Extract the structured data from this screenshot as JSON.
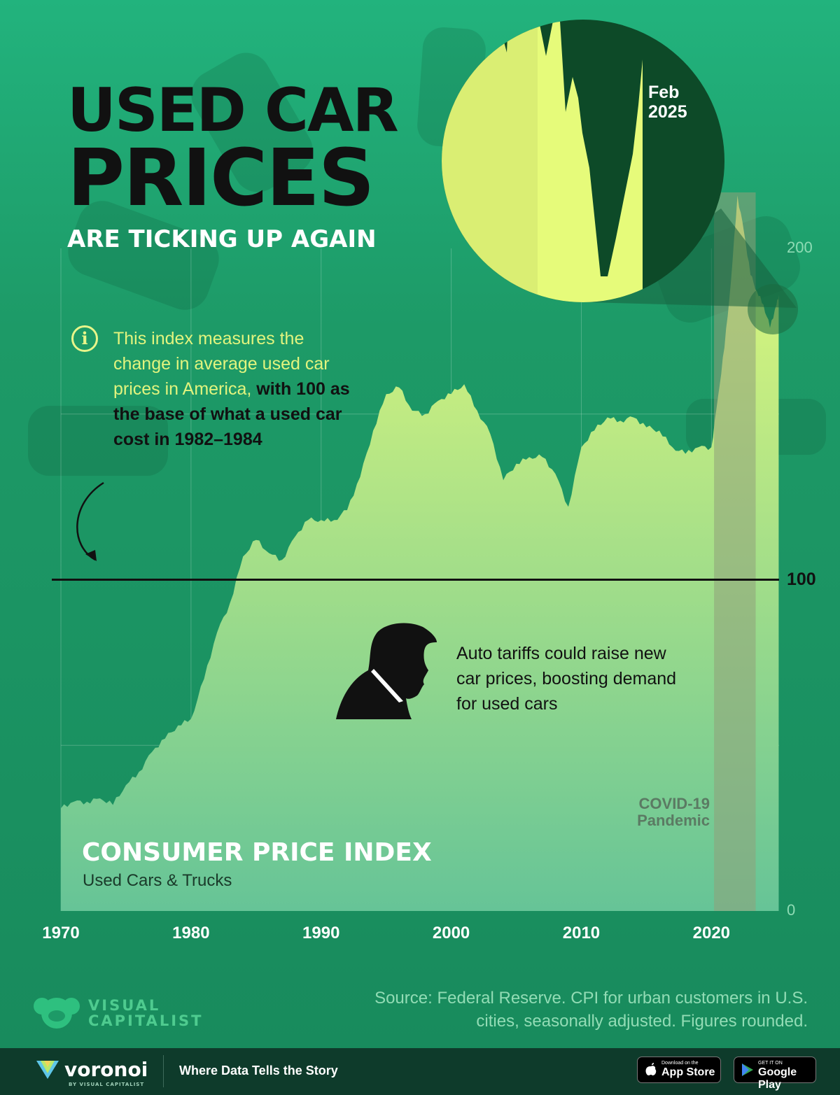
{
  "header": {
    "title_line1": "USED CAR",
    "title_line2": "PRICES",
    "subtitle": "ARE TICKING UP AGAIN"
  },
  "info_note": {
    "text_highlight": "This index measures the change in average used car prices in America,",
    "text_bold": "with 100 as the base of what a used car cost in 1982–1984"
  },
  "annotation": "Auto tariffs could raise new car prices, boosting demand for used cars",
  "zoom_label_line1": "Feb",
  "zoom_label_line2": "2025",
  "covid_label_line1": "COVID-19",
  "covid_label_line2": "Pandemic",
  "chart_title": "CONSUMER PRICE INDEX",
  "chart_subtitle": "Used Cars & Trucks",
  "reference_label": "100",
  "source": "Source: Federal Reserve. CPI for urban customers in U.S. cities, seasonally adjusted. Figures rounded.",
  "brand": {
    "vc_line1": "VISUAL",
    "vc_line2": "CAPITALIST",
    "voronoi": "voronoi",
    "voronoi_sub": "BY VISUAL CAPITALIST",
    "tagline": "Where Data Tells the Story",
    "appstore_small": "Download on the",
    "appstore_big": "App Store",
    "googleplay_small": "GET IT ON",
    "googleplay_big": "Google Play"
  },
  "colors": {
    "background": "#1f9a68",
    "area_top": "#e6fb7a",
    "area_bottom": "#66c497",
    "covid_band": "#8fa07a",
    "zoom_dark": "#0d4a28"
  },
  "chart_data": {
    "type": "area",
    "title": "CONSUMER PRICE INDEX",
    "subtitle": "Used Cars & Trucks",
    "xlim": [
      1970,
      2025.2
    ],
    "ylim": [
      0,
      200
    ],
    "x_ticks": [
      "1970",
      "1980",
      "1990",
      "2000",
      "2010",
      "2020"
    ],
    "y_ticks": [
      "0",
      "200"
    ],
    "reference_line": 100,
    "covid_band": [
      2020.2,
      2023.4
    ],
    "zoom_annotation": "Feb 2025",
    "x": [
      1970.0,
      1971.0,
      1972.0,
      1973.0,
      1974.0,
      1975.0,
      1976.0,
      1977.0,
      1978.0,
      1979.0,
      1980.0,
      1981.0,
      1982.0,
      1983.0,
      1984.0,
      1985.0,
      1986.0,
      1987.0,
      1988.0,
      1989.0,
      1990.0,
      1991.0,
      1992.0,
      1993.0,
      1994.0,
      1995.0,
      1996.0,
      1997.0,
      1998.0,
      1999.0,
      2000.0,
      2001.0,
      2002.0,
      2003.0,
      2004.0,
      2005.0,
      2006.0,
      2007.0,
      2008.0,
      2009.0,
      2010.0,
      2011.0,
      2012.0,
      2013.0,
      2014.0,
      2015.0,
      2016.0,
      2017.0,
      2018.0,
      2019.0,
      2020.0,
      2020.5,
      2021.0,
      2021.5,
      2022.0,
      2022.5,
      2023.0,
      2023.5,
      2024.0,
      2024.5,
      2025.0,
      2025.17
    ],
    "values": [
      31,
      33,
      33,
      34,
      32,
      38,
      42,
      48,
      52,
      56,
      58,
      70,
      84,
      93,
      107,
      112,
      108,
      106,
      113,
      118,
      118,
      118,
      121,
      131,
      145,
      156,
      158,
      151,
      150,
      154,
      156,
      159,
      151,
      144,
      130,
      135,
      137,
      137,
      132,
      122,
      140,
      145,
      149,
      148,
      149,
      146,
      145,
      140,
      138,
      140,
      140,
      155,
      170,
      190,
      216,
      205,
      192,
      187,
      183,
      176,
      183,
      186
    ]
  }
}
